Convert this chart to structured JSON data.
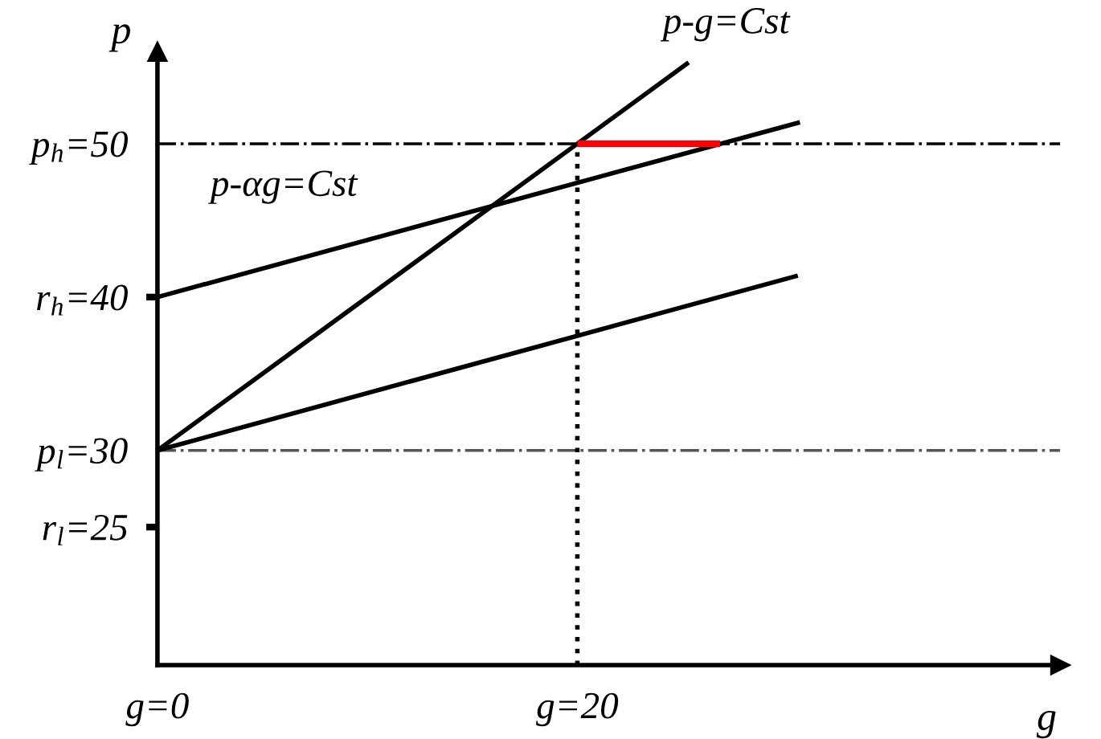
{
  "chart_data": {
    "type": "line",
    "xlabel": "g",
    "ylabel": "p",
    "xlim": [
      0,
      43
    ],
    "ylim": [
      16,
      56
    ],
    "xticks": [
      {
        "value": 0,
        "label": "g=0"
      },
      {
        "value": 20,
        "label": "g=20"
      }
    ],
    "yticks": [
      {
        "value": 25,
        "label": "r$_{l}$=25"
      },
      {
        "value": 30,
        "label": "p$_{l}$=30"
      },
      {
        "value": 40,
        "label": "r$_{h}$=40"
      },
      {
        "value": 50,
        "label": "p$_{h}$=50"
      }
    ],
    "series": [
      {
        "color": "#000000",
        "x": [
          0,
          25.3
        ],
        "values": [
          30,
          55.3
        ]
      },
      {
        "color": "#000000",
        "x": [
          0,
          30.6
        ],
        "values": [
          40,
          51.4
        ]
      },
      {
        "color": "#000000",
        "x": [
          0,
          30.5
        ],
        "values": [
          30,
          41.4
        ]
      },
      {
        "color": "#000000",
        "x": [
          20,
          20
        ],
        "values": [
          16,
          50
        ],
        "line_style": "dotted"
      },
      {
        "color": "#ff0000",
        "x": [
          20,
          26.8
        ],
        "values": [
          50,
          50
        ]
      }
    ],
    "ref_lines": [
      {
        "axis": "y",
        "value": 50,
        "line_style": "dashdot",
        "color": "#000000"
      },
      {
        "axis": "y",
        "value": 30,
        "line_style": "dashdot",
        "color": "#555555"
      }
    ],
    "annotations": [
      "p-g=Cst",
      "p-αg=Cst"
    ],
    "grid": false,
    "legend": false,
    "marker": "none",
    "line_style": "solid"
  }
}
